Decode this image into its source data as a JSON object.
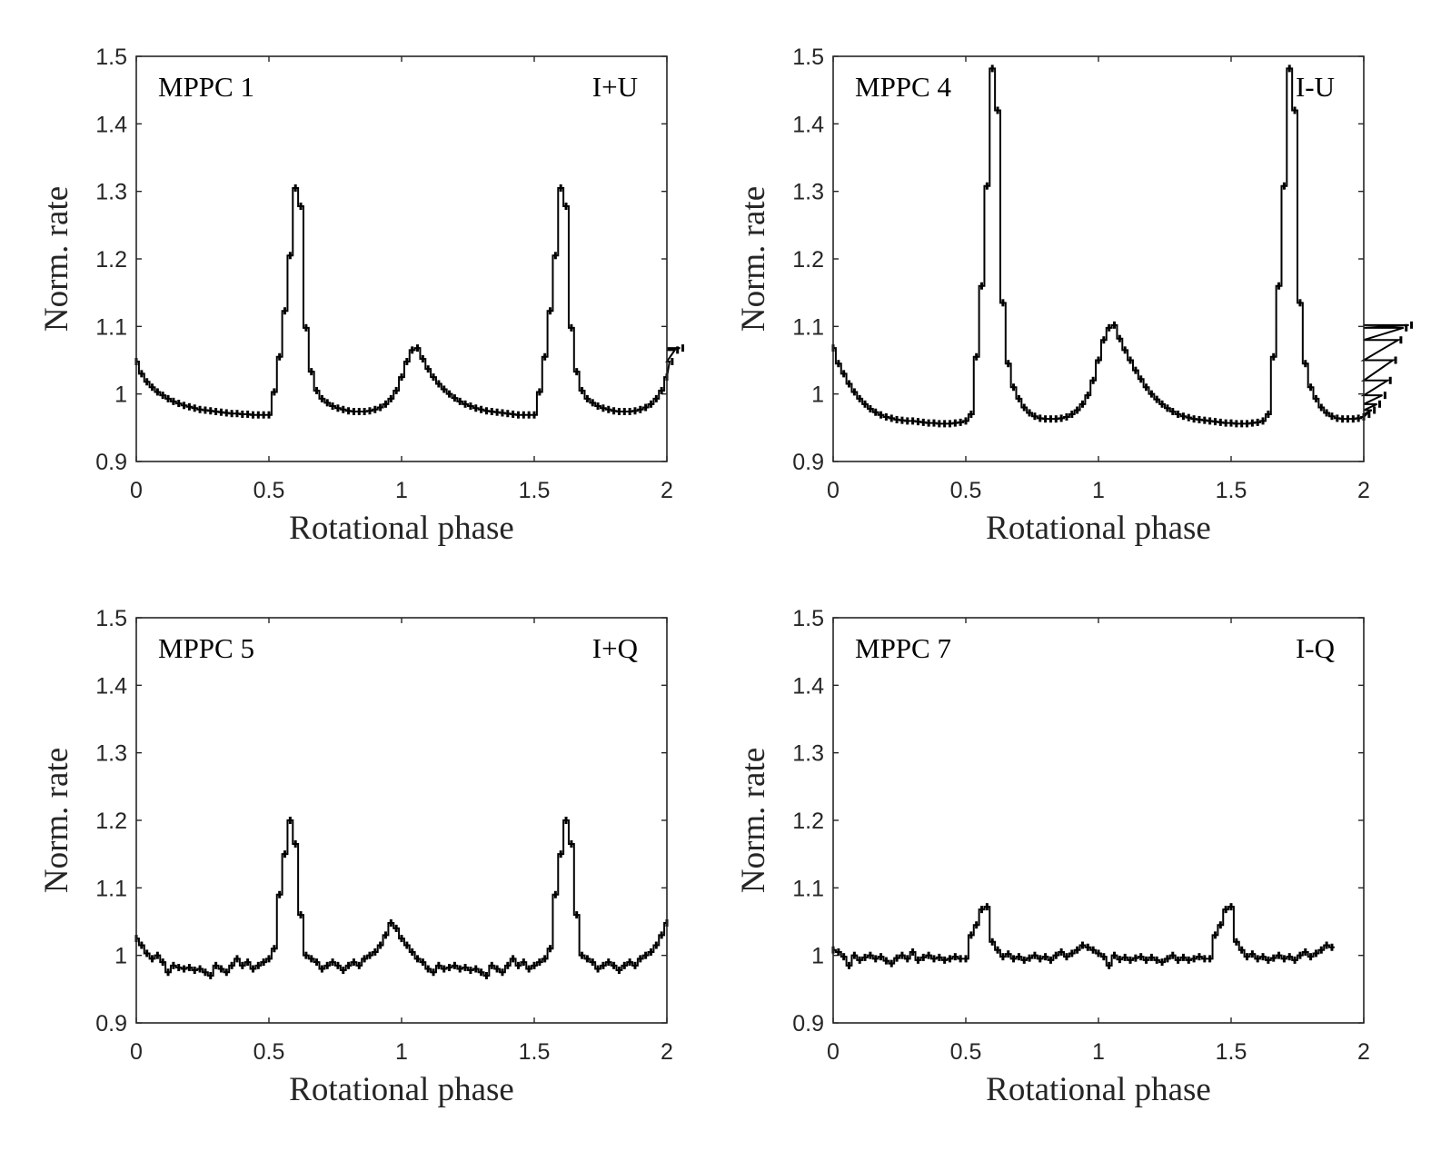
{
  "chart_data": [
    {
      "type": "line",
      "id": "p1",
      "detector_label": "MPPC 1",
      "channel_label": "I+U",
      "xlabel": "Rotational phase",
      "ylabel": "Norm. rate",
      "xlim": [
        0,
        2
      ],
      "ylim": [
        0.9,
        1.5
      ],
      "xticks": [
        "0",
        "0.5",
        "1",
        "1.5",
        "2"
      ],
      "yticks": [
        "0.9",
        "1",
        "1.1",
        "1.2",
        "1.3",
        "1.4",
        "1.5"
      ],
      "bin_width": 0.02,
      "y": [
        1.048,
        1.03,
        1.018,
        1.01,
        1.003,
        0.998,
        0.993,
        0.989,
        0.986,
        0.983,
        0.981,
        0.979,
        0.977,
        0.976,
        0.975,
        0.974,
        0.973,
        0.972,
        0.971,
        0.971,
        0.97,
        0.97,
        0.969,
        0.969,
        0.969,
        0.969,
        1.003,
        1.055,
        1.123,
        1.205,
        1.305,
        1.278,
        1.098,
        1.033,
        1.005,
        0.993,
        0.987,
        0.982,
        0.979,
        0.977,
        0.975,
        0.974,
        0.974,
        0.974,
        0.975,
        0.977,
        0.98,
        0.985,
        0.993,
        1.005,
        1.025,
        1.048,
        1.065,
        1.068,
        1.052,
        1.037,
        1.025,
        1.015,
        1.007,
        1.0,
        0.994,
        0.989,
        0.985,
        0.982,
        0.979,
        0.977,
        0.975,
        0.974,
        0.973,
        0.972,
        0.971,
        0.97,
        0.969,
        0.969,
        0.969,
        0.969,
        1.003,
        1.055,
        1.123,
        1.205,
        1.305,
        1.278,
        1.098,
        1.033,
        1.005,
        0.993,
        0.987,
        0.982,
        0.979,
        0.977,
        0.975,
        0.974,
        0.974,
        0.974,
        0.975,
        0.977,
        0.98,
        0.985,
        0.993,
        1.005,
        1.025,
        1.048,
        1.065,
        1.068
      ]
    },
    {
      "type": "line",
      "id": "p2",
      "detector_label": "MPPC 4",
      "channel_label": "I-U",
      "xlabel": "Rotational phase",
      "ylabel": "Norm. rate",
      "xlim": [
        0,
        2
      ],
      "ylim": [
        0.9,
        1.5
      ],
      "xticks": [
        "0",
        "0.5",
        "1",
        "1.5",
        "2"
      ],
      "yticks": [
        "0.9",
        "1",
        "1.1",
        "1.2",
        "1.3",
        "1.4",
        "1.5"
      ],
      "bin_width": 0.02,
      "y": [
        1.068,
        1.045,
        1.03,
        1.015,
        1.003,
        0.993,
        0.985,
        0.978,
        0.973,
        0.969,
        0.966,
        0.964,
        0.962,
        0.961,
        0.96,
        0.96,
        0.959,
        0.958,
        0.957,
        0.957,
        0.956,
        0.956,
        0.956,
        0.957,
        0.958,
        0.96,
        0.97,
        1.055,
        1.16,
        1.308,
        1.482,
        1.42,
        1.135,
        1.045,
        1.01,
        0.993,
        0.98,
        0.972,
        0.967,
        0.964,
        0.963,
        0.963,
        0.963,
        0.964,
        0.966,
        0.97,
        0.976,
        0.985,
        0.998,
        1.02,
        1.05,
        1.08,
        1.098,
        1.102,
        1.082,
        1.065,
        1.05,
        1.035,
        1.022,
        1.01,
        1.0,
        0.992,
        0.985,
        0.979,
        0.974,
        0.97,
        0.967,
        0.965,
        0.963,
        0.962,
        0.961,
        0.96,
        0.959,
        0.958,
        0.957,
        0.957,
        0.956,
        0.956,
        0.956,
        0.957,
        0.958,
        0.96,
        0.97,
        1.055,
        1.16,
        1.308,
        1.482,
        1.42,
        1.135,
        1.045,
        1.01,
        0.993,
        0.98,
        0.972,
        0.967,
        0.964,
        0.963,
        0.963,
        0.963,
        0.964,
        0.966,
        0.97,
        0.976,
        0.985,
        0.998,
        1.02,
        1.05,
        1.08,
        1.098,
        1.102
      ]
    },
    {
      "type": "line",
      "id": "p3",
      "detector_label": "MPPC 5",
      "channel_label": "I+Q",
      "xlabel": "Rotational phase",
      "ylabel": "Norm. rate",
      "xlim": [
        0,
        2
      ],
      "ylim": [
        0.9,
        1.5
      ],
      "xticks": [
        "0",
        "0.5",
        "1",
        "1.5",
        "2"
      ],
      "yticks": [
        "0.9",
        "1",
        "1.1",
        "1.2",
        "1.3",
        "1.4",
        "1.5"
      ],
      "bin_width": 0.02,
      "y": [
        1.025,
        1.015,
        1.003,
        0.995,
        1.0,
        0.99,
        0.975,
        0.985,
        0.982,
        0.98,
        0.982,
        0.978,
        0.98,
        0.975,
        0.97,
        0.985,
        0.98,
        0.975,
        0.985,
        0.995,
        0.985,
        0.99,
        0.98,
        0.985,
        0.99,
        0.995,
        1.01,
        1.09,
        1.15,
        1.2,
        1.165,
        1.06,
        1.0,
        0.995,
        0.99,
        0.98,
        0.985,
        0.99,
        0.985,
        0.978,
        0.985,
        0.99,
        0.985,
        0.995,
        1.0,
        1.005,
        1.015,
        1.03,
        1.048,
        1.04,
        1.025,
        1.015,
        1.005,
        0.995,
        0.99,
        0.98,
        0.975,
        0.985,
        0.98,
        0.982,
        0.985,
        0.98,
        0.982,
        0.978,
        0.98,
        0.975,
        0.97,
        0.985,
        0.98,
        0.975,
        0.985,
        0.995,
        0.985,
        0.99,
        0.98,
        0.985,
        0.99,
        0.995,
        1.01,
        1.09,
        1.15,
        1.2,
        1.165,
        1.06,
        1.0,
        0.995,
        0.99,
        0.98,
        0.985,
        0.99,
        0.985,
        0.978,
        0.985,
        0.99,
        0.985,
        0.995,
        1.0,
        1.005,
        1.015,
        1.03,
        1.048
      ]
    },
    {
      "type": "line",
      "id": "p4",
      "detector_label": "MPPC 7",
      "channel_label": "I-Q",
      "xlabel": "Rotational phase",
      "ylabel": "Norm. rate",
      "xlim": [
        0,
        2
      ],
      "ylim": [
        0.9,
        1.5
      ],
      "xticks": [
        "0",
        "0.5",
        "1",
        "1.5",
        "2"
      ],
      "yticks": [
        "0.9",
        "1",
        "1.1",
        "1.2",
        "1.3",
        "1.4",
        "1.5"
      ],
      "bin_width": 0.02,
      "y": [
        1.008,
        1.005,
        0.998,
        0.985,
        1.0,
        0.993,
        0.997,
        1.0,
        0.995,
        0.998,
        0.992,
        0.988,
        0.996,
        1.0,
        0.995,
        1.005,
        0.993,
        0.997,
        1.0,
        0.995,
        0.997,
        0.993,
        0.995,
        0.998,
        0.995,
        0.995,
        1.03,
        1.045,
        1.068,
        1.072,
        1.02,
        1.008,
        0.998,
        1.002,
        0.995,
        0.998,
        0.993,
        0.996,
        1.0,
        0.995,
        0.998,
        0.993,
        1.0,
        1.005,
        0.998,
        1.003,
        1.008,
        1.015,
        1.012,
        1.008,
        1.003,
        0.998,
        0.985,
        1.0,
        0.994,
        0.997,
        0.993,
        0.996,
        0.998,
        0.993,
        0.997,
        0.993,
        0.99,
        0.995,
        1.0,
        0.993,
        0.997,
        0.993,
        0.995,
        0.998,
        0.995,
        0.995,
        1.03,
        1.045,
        1.068,
        1.072,
        1.02,
        1.008,
        0.998,
        1.002,
        0.995,
        0.998,
        0.993,
        0.996,
        1.0,
        0.995,
        0.998,
        0.993,
        1.0,
        1.005,
        0.998,
        1.003,
        1.008,
        1.015,
        1.012
      ]
    }
  ]
}
